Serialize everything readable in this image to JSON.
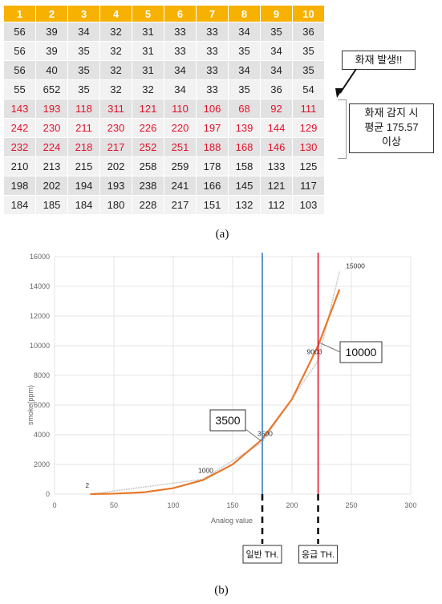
{
  "table": {
    "headers": [
      "1",
      "2",
      "3",
      "4",
      "5",
      "6",
      "7",
      "8",
      "9",
      "10"
    ],
    "rows": [
      [
        "56",
        "39",
        "34",
        "32",
        "31",
        "33",
        "33",
        "34",
        "35",
        "36"
      ],
      [
        "56",
        "39",
        "35",
        "32",
        "31",
        "33",
        "33",
        "35",
        "34",
        "35"
      ],
      [
        "56",
        "40",
        "35",
        "32",
        "31",
        "34",
        "33",
        "34",
        "34",
        "35"
      ],
      [
        "55",
        "652",
        "35",
        "32",
        "32",
        "34",
        "33",
        "35",
        "36",
        "54"
      ],
      [
        "143",
        "193",
        "118",
        "311",
        "121",
        "110",
        "106",
        "68",
        "92",
        "111"
      ],
      [
        "242",
        "230",
        "211",
        "230",
        "226",
        "220",
        "197",
        "139",
        "144",
        "129"
      ],
      [
        "232",
        "224",
        "218",
        "217",
        "252",
        "251",
        "188",
        "168",
        "146",
        "130"
      ],
      [
        "210",
        "213",
        "215",
        "202",
        "258",
        "259",
        "178",
        "158",
        "133",
        "125"
      ],
      [
        "198",
        "202",
        "194",
        "193",
        "238",
        "241",
        "166",
        "145",
        "121",
        "117"
      ],
      [
        "184",
        "185",
        "184",
        "180",
        "228",
        "217",
        "151",
        "132",
        "112",
        "103"
      ]
    ],
    "highlight_rows": [
      4,
      5,
      6
    ],
    "highlight_color": "#e3132c",
    "header_color": "#f7b100"
  },
  "callouts": {
    "fire": "화재 발생!!",
    "detect_line1": "화재 감지 시",
    "detect_line2": "평균 175.57",
    "detect_line3": "이상"
  },
  "captions": {
    "a": "(a)",
    "b": "(b)"
  },
  "chart_data": {
    "type": "line",
    "title": "",
    "xlabel": "Analog value",
    "ylabel": "smoke(ppm)",
    "xlim": [
      0,
      300
    ],
    "ylim": [
      0,
      16000
    ],
    "xticks": [
      "0",
      "50",
      "100",
      "150",
      "200",
      "250",
      "300"
    ],
    "yticks": [
      "0",
      "2000",
      "4000",
      "6000",
      "8000",
      "10000",
      "12000",
      "14000",
      "16000"
    ],
    "series": [
      {
        "style": "measured-gray",
        "color": "#c8c8c8",
        "x": [
          30,
          125,
          175,
          222,
          240
        ],
        "y": [
          2,
          1000,
          3500,
          9000,
          15000
        ]
      },
      {
        "style": "fitted-orange",
        "color": "#e8782a",
        "x": [
          30,
          50,
          75,
          100,
          125,
          150,
          175,
          200,
          222,
          240
        ],
        "y": [
          0,
          30,
          120,
          400,
          950,
          2000,
          3700,
          6400,
          10000,
          13800
        ]
      }
    ],
    "point_labels": [
      {
        "x": 30,
        "y": 2,
        "text": "2"
      },
      {
        "x": 125,
        "y": 1000,
        "text": "1000"
      },
      {
        "x": 175,
        "y": 3500,
        "text": "3500"
      },
      {
        "x": 222,
        "y": 9000,
        "text": "9000"
      },
      {
        "x": 240,
        "y": 15000,
        "text": "15000"
      }
    ],
    "thresholds": [
      {
        "x": 175,
        "color": "#3a7cc4",
        "label": "일반 TH.",
        "callout": "3500"
      },
      {
        "x": 222,
        "color": "#e3132c",
        "label": "응급 TH.",
        "callout": "10000"
      }
    ]
  }
}
